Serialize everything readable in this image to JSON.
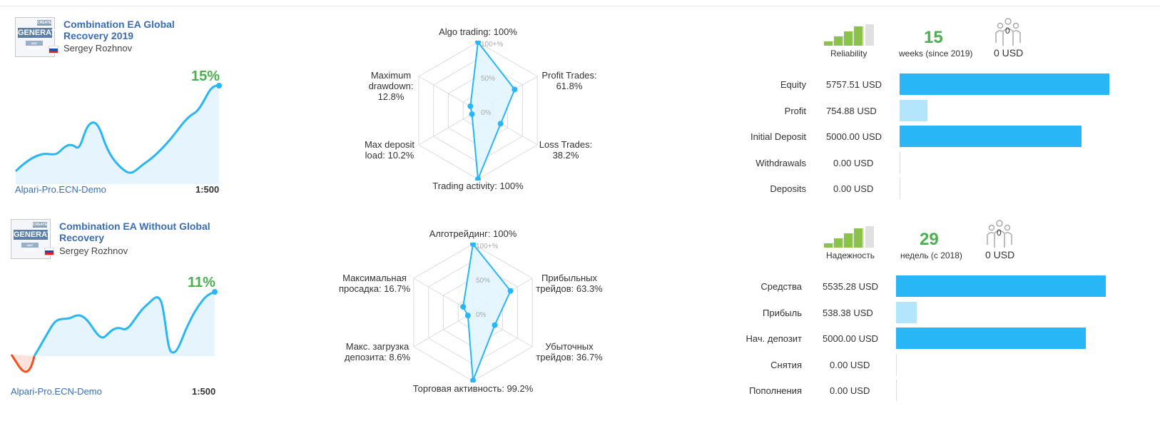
{
  "signals": [
    {
      "title": "Combination EA Global Recovery 2019",
      "author": "Sergey Rozhnov",
      "logo": {
        "top": "CREATE MODE",
        "main": "GENERATOR",
        "bottom": "ANY SYMBOL"
      },
      "growth": "15%",
      "server": "Alpari-Pro.ECN-Demo",
      "leverage": "1:500",
      "radar": {
        "ticks": [
          "100+%",
          "50%",
          "0%"
        ],
        "algo_label": "Algo trading: 100%",
        "profit_label_1": "Profit Trades:",
        "profit_label_2": "61.8%",
        "loss_label_1": "Loss Trades:",
        "loss_label_2": "38.2%",
        "activity_label": "Trading activity: 100%",
        "load_label_1": "Max deposit",
        "load_label_2": "load: 10.2%",
        "drawdown_label_1": "Maximum",
        "drawdown_label_2": "drawdown:",
        "drawdown_label_3": "12.8%",
        "values": {
          "algo": 100,
          "profit": 61.8,
          "loss": 38.2,
          "activity": 100,
          "load": 10.2,
          "drawdown": 12.8
        }
      },
      "reliability_label": "Reliability",
      "weeks": "15",
      "weeks_label": "weeks (since 2019)",
      "subscribers": "0",
      "subscribers_usd": "0 USD",
      "financials": [
        {
          "label": "Equity",
          "value": "5757.51 USD",
          "amount": 5757.51
        },
        {
          "label": "Profit",
          "value": "754.88 USD",
          "amount": 754.88
        },
        {
          "label": "Initial Deposit",
          "value": "5000.00 USD",
          "amount": 5000.0
        },
        {
          "label": "Withdrawals",
          "value": "0.00 USD",
          "amount": 0
        },
        {
          "label": "Deposits",
          "value": "0.00 USD",
          "amount": 0
        }
      ]
    },
    {
      "title": "Combination EA Without Global Recovery",
      "author": "Sergey Rozhnov",
      "logo": {
        "top": "CREATE MODE",
        "main": "GENERATOR",
        "bottom": "ANY SYMBOL"
      },
      "growth": "11%",
      "server": "Alpari-Pro.ECN-Demo",
      "leverage": "1:500",
      "radar": {
        "ticks": [
          "100+%",
          "50%",
          "0%"
        ],
        "algo_label": "Алготрейдинг: 100%",
        "profit_label_1": "Прибыльных",
        "profit_label_2": "трейдов: 63.3%",
        "loss_label_1": "Убыточных",
        "loss_label_2": "трейдов: 36.7%",
        "activity_label": "Торговая активность: 99.2%",
        "load_label_1": "Макс. загрузка",
        "load_label_2": "депозита: 8.6%",
        "drawdown_label_1": "Максимальная",
        "drawdown_label_2": "просадка: 16.7%",
        "drawdown_label_3": "",
        "values": {
          "algo": 100,
          "profit": 63.3,
          "loss": 36.7,
          "activity": 99.2,
          "load": 8.6,
          "drawdown": 16.7
        }
      },
      "reliability_label": "Надежность",
      "weeks": "29",
      "weeks_label": "недель (с 2018)",
      "subscribers": "0",
      "subscribers_usd": "0 USD",
      "financials": [
        {
          "label": "Средства",
          "value": "5535.28 USD",
          "amount": 5535.28
        },
        {
          "label": "Прибыль",
          "value": "538.38 USD",
          "amount": 538.38
        },
        {
          "label": "Нач. депозит",
          "value": "5000.00 USD",
          "amount": 5000.0
        },
        {
          "label": "Снятия",
          "value": "0.00 USD",
          "amount": 0
        },
        {
          "label": "Пополнения",
          "value": "0.00 USD",
          "amount": 0
        }
      ]
    }
  ],
  "colors": {
    "accent": "#29b6f6",
    "accent_light": "#b3e5fc",
    "growth": "#4caf50",
    "negative": "#f4511e",
    "link": "#3b6db3"
  }
}
